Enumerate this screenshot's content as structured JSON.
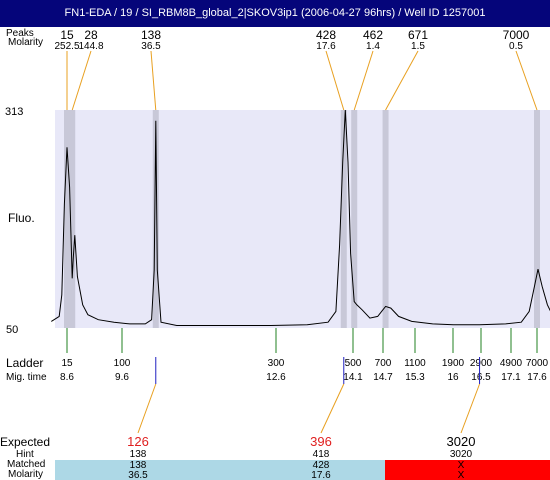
{
  "header": {
    "title": "FN1-EDA / 19 / SI_RBM8B_global_2|SKOV3ip1 (2006-04-27 96hrs) / Well ID 1257001"
  },
  "labels": {
    "peaks_row": "Peaks",
    "molarity_row": "Molarity",
    "y_axis": "Fluo.",
    "ladder": "Ladder",
    "mig_time": "Mig. time",
    "expected": "Expected",
    "hint": "Hint",
    "matched": "Matched",
    "molarity_bottom": "Molarity"
  },
  "colors": {
    "title_bar": "#05057a",
    "plot_bg": "#e8e8f8",
    "peak_band": "#c8c8d8",
    "peak_leader": "#e8a020",
    "ladder_tick": "#208020",
    "expected_tick": "#2020c0",
    "expected_red": "#e02020",
    "matched_blue": "#add8e6",
    "matched_red": "#ff0000"
  },
  "chart_data": {
    "type": "line",
    "ylabel": "Fluo.",
    "ylim": [
      50,
      313
    ],
    "y_ticks": [
      "313",
      "50"
    ],
    "peaks": [
      {
        "size": "15",
        "molarity": "252.5",
        "time": 8.6
      },
      {
        "size": "28",
        "molarity": "144.8",
        "time": 8.7
      },
      {
        "size": "138",
        "molarity": "36.5",
        "time": 10.3
      },
      {
        "size": "428",
        "molarity": "17.6",
        "time": 13.9
      },
      {
        "size": "462",
        "molarity": "1.4",
        "time": 14.1
      },
      {
        "size": "671",
        "molarity": "1.5",
        "time": 14.7
      },
      {
        "size": "7000",
        "molarity": "0.5",
        "time": 17.6
      }
    ],
    "ladder": [
      {
        "size": "15",
        "time": "8.6"
      },
      {
        "size": "100",
        "time": "9.6"
      },
      {
        "size": "300",
        "time": "12.6"
      },
      {
        "size": "500",
        "time": "14.1"
      },
      {
        "size": "700",
        "time": "14.7"
      },
      {
        "size": "1100",
        "time": "15.3"
      },
      {
        "size": "1900",
        "time": "16"
      },
      {
        "size": "2900",
        "time": "16.5"
      },
      {
        "size": "4900",
        "time": "17.1"
      },
      {
        "size": "7000",
        "time": "17.6"
      }
    ],
    "expected": [
      {
        "value": "126",
        "hint": "138",
        "matched": "138",
        "molarity": "36.5",
        "time": 10.3,
        "color": "red",
        "status": "matched"
      },
      {
        "value": "396",
        "hint": "418",
        "matched": "428",
        "molarity": "17.6",
        "time": 13.9,
        "color": "red",
        "status": "matched"
      },
      {
        "value": "3020",
        "hint": "3020",
        "matched": "X",
        "molarity": "X",
        "time": 16.5,
        "color": "black",
        "status": "missing"
      }
    ],
    "trace": [
      [
        8.3,
        58
      ],
      [
        8.45,
        64
      ],
      [
        8.5,
        90
      ],
      [
        8.55,
        200
      ],
      [
        8.6,
        268
      ],
      [
        8.65,
        220
      ],
      [
        8.7,
        110
      ],
      [
        8.72,
        135
      ],
      [
        8.75,
        162
      ],
      [
        8.8,
        112
      ],
      [
        8.9,
        78
      ],
      [
        9.0,
        66
      ],
      [
        9.2,
        60
      ],
      [
        9.5,
        57
      ],
      [
        9.8,
        55
      ],
      [
        10.1,
        55
      ],
      [
        10.22,
        60
      ],
      [
        10.27,
        120
      ],
      [
        10.3,
        300
      ],
      [
        10.33,
        120
      ],
      [
        10.4,
        57
      ],
      [
        10.7,
        53
      ],
      [
        11.5,
        53
      ],
      [
        12.5,
        53
      ],
      [
        13.2,
        54
      ],
      [
        13.6,
        57
      ],
      [
        13.75,
        70
      ],
      [
        13.82,
        150
      ],
      [
        13.88,
        250
      ],
      [
        13.93,
        313
      ],
      [
        13.98,
        250
      ],
      [
        14.03,
        140
      ],
      [
        14.1,
        82
      ],
      [
        14.15,
        78
      ],
      [
        14.25,
        72
      ],
      [
        14.4,
        62
      ],
      [
        14.55,
        64
      ],
      [
        14.7,
        76
      ],
      [
        14.8,
        74
      ],
      [
        14.95,
        64
      ],
      [
        15.2,
        58
      ],
      [
        15.6,
        55
      ],
      [
        16.0,
        54
      ],
      [
        16.5,
        54
      ],
      [
        17.0,
        55
      ],
      [
        17.3,
        57
      ],
      [
        17.45,
        70
      ],
      [
        17.55,
        100
      ],
      [
        17.62,
        121
      ],
      [
        17.7,
        100
      ],
      [
        17.8,
        78
      ],
      [
        17.9,
        65
      ]
    ]
  }
}
